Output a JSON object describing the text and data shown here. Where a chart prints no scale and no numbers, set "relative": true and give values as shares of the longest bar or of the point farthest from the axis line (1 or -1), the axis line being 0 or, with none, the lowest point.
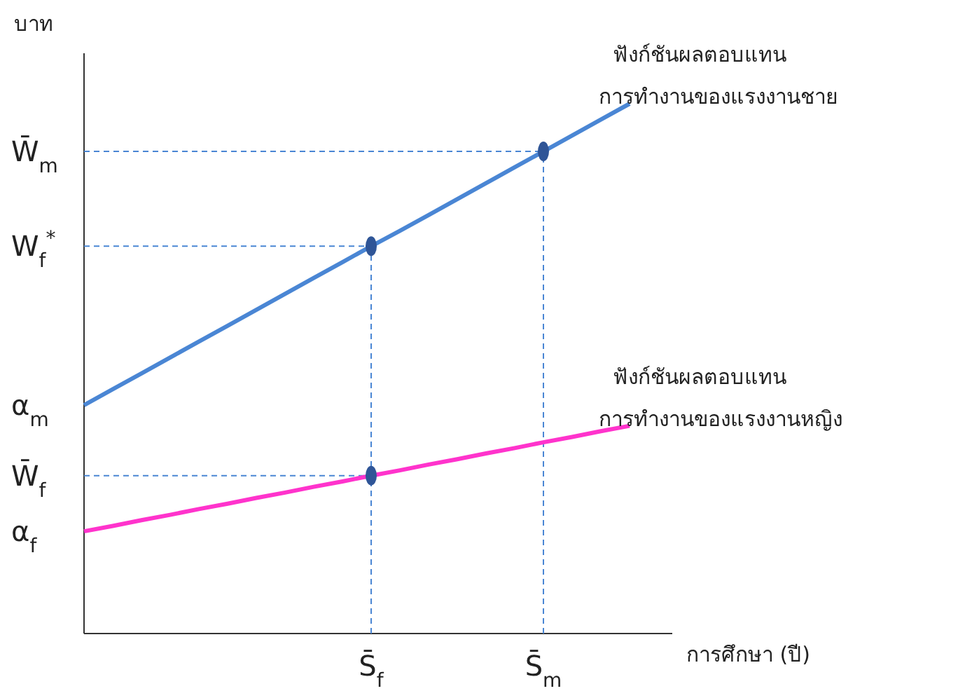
{
  "chart_data": {
    "type": "line",
    "relative": true,
    "ylabel": "บาท",
    "xlabel": "การศึกษา (ปี)",
    "categories": [
      null,
      null,
      null,
      null,
      null,
      null,
      null,
      null,
      null,
      null,
      "S̄$_{f}$",
      null,
      null,
      null,
      null,
      null,
      "S̄$_{m}$",
      null,
      null,
      null,
      null
    ],
    "series": [
      {
        "name": "ฟังก์ชันผลตอบแทน การทำงานของแรงงานชาย",
        "color": "#4a86d4",
        "values": [
          0.431,
          0.461,
          0.491,
          0.521,
          0.551,
          0.581,
          0.611,
          0.641,
          0.671,
          0.701,
          0.731,
          0.76,
          0.79,
          0.82,
          0.85,
          0.88,
          0.91,
          0.94,
          0.97,
          1,
          null
        ]
      },
      {
        "name": "ฟังก์ชันผลตอบแทน การทำงานของแรงงานหญิง",
        "color": "#ff33cc",
        "values": [
          0.193,
          0.203,
          0.214,
          0.224,
          0.235,
          0.245,
          0.256,
          0.266,
          0.277,
          0.287,
          0.298,
          0.308,
          0.319,
          0.329,
          0.34,
          0.35,
          0.361,
          0.371,
          0.382,
          0.392,
          null
        ]
      },
      {
        "type": "scatter",
        "color": "#2f5597",
        "values": [
          null,
          null,
          null,
          null,
          null,
          null,
          null,
          null,
          null,
          null,
          0.731,
          null,
          null,
          null,
          null,
          null,
          0.91,
          null,
          null,
          null,
          null
        ]
      },
      {
        "type": "scatter",
        "color": "#2f5597",
        "values": [
          null,
          null,
          null,
          null,
          null,
          null,
          null,
          null,
          null,
          null,
          0.298,
          null,
          null,
          null,
          null,
          null,
          null,
          null,
          null,
          null,
          null
        ]
      }
    ],
    "ref_lines": [
      {
        "axis": "y",
        "value": 0.91,
        "label": "W̄$_{m}$",
        "color": "#4a86d4",
        "line_style": "dashed"
      },
      {
        "axis": "y",
        "value": 0.731,
        "label": "W$_{f}$$^{*}$",
        "color": "#4a86d4",
        "line_style": "dashed"
      },
      {
        "axis": "y",
        "value": 0.298,
        "label": "W̄$_{f}$",
        "color": "#4a86d4",
        "line_style": "dashed"
      },
      {
        "axis": "x",
        "value": "S̄$_{f}$",
        "color": "#4a86d4",
        "line_style": "dashed"
      },
      {
        "axis": "x",
        "value": "S̄$_{m}$",
        "color": "#4a86d4",
        "line_style": "dashed"
      }
    ],
    "annotations": [
      "α$_{m}$",
      "α$_{f}$"
    ],
    "line_style": "solid"
  }
}
